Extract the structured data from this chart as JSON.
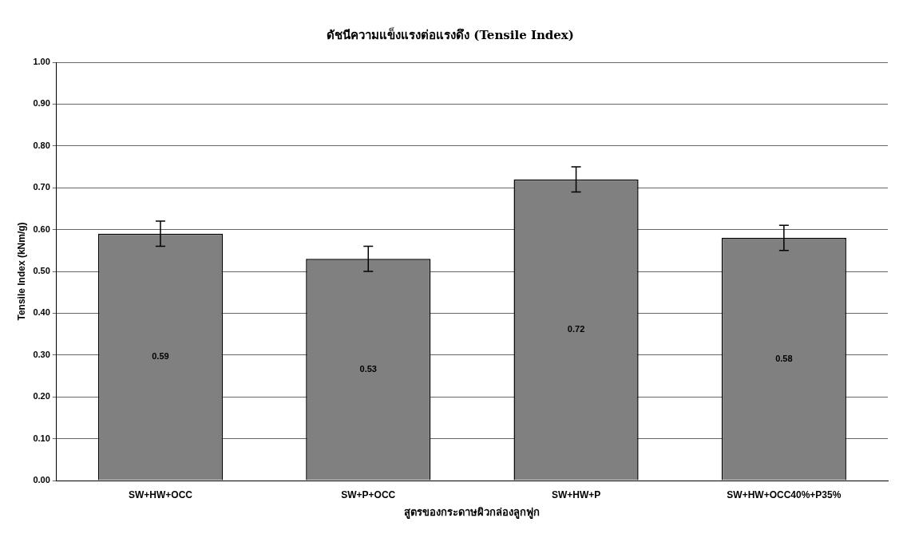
{
  "chart_data": {
    "type": "bar",
    "title": "ดัชนีความแข็งแรงต่อแรงดึง (Tensile Index)",
    "xlabel": "สูตรของกระดาษผิวกล่องลูกฟูก",
    "ylabel": "Tensile Index (kNm/g)",
    "categories": [
      "SW+HW+OCC",
      "SW+P+OCC",
      "SW+HW+P",
      "SW+HW+OCC40%+P35%"
    ],
    "values": [
      0.59,
      0.53,
      0.72,
      0.58
    ],
    "errors": [
      0.03,
      0.03,
      0.03,
      0.03
    ],
    "color": "#808080",
    "data_labels": true,
    "ylim": [
      0,
      1
    ],
    "yticks": [
      {
        "value": 0,
        "label": "0.00"
      },
      {
        "value": 0.1,
        "label": "0.10"
      },
      {
        "value": 0.2,
        "label": "0.20"
      },
      {
        "value": 0.3,
        "label": "0.30"
      },
      {
        "value": 0.4,
        "label": "0.40"
      },
      {
        "value": 0.5,
        "label": "0.50"
      },
      {
        "value": 0.6,
        "label": "0.60"
      },
      {
        "value": 0.7,
        "label": "0.70"
      },
      {
        "value": 0.8,
        "label": "0.80"
      },
      {
        "value": 0.9,
        "label": "0.90"
      },
      {
        "value": 1,
        "label": "1.00"
      }
    ],
    "grid": "y"
  }
}
